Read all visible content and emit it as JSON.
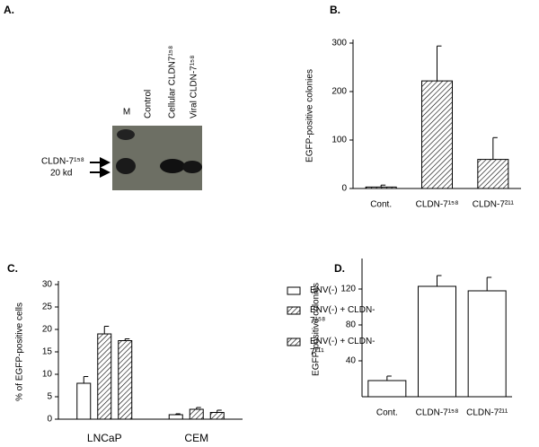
{
  "blot": {
    "label": "A.",
    "lanes": [
      "M",
      "Control",
      "Cellular CLDN7¹⁵⁸",
      "Viral CLDN-7¹⁵⁸"
    ],
    "markers": [
      "CLDN-7¹⁵⁸",
      "20 kd"
    ]
  },
  "chart_data": [
    {
      "type": "bar",
      "label": "B.",
      "ylabel": "EGFP-positive colonies",
      "categories": [
        "Cont.",
        "CLDN-7¹⁵⁸",
        "CLDN-7²¹¹"
      ],
      "values": [
        3,
        222,
        60
      ],
      "errors": [
        4,
        72,
        45
      ],
      "color": "#ffffff",
      "hatch": true,
      "ylim": [
        0,
        300
      ],
      "yticks": [
        0,
        100,
        200,
        300
      ]
    },
    {
      "type": "bar",
      "label": "C.",
      "ylabel": "% of EGFP-positive cells",
      "categories": [
        "LNCaP",
        "CEM"
      ],
      "series": [
        {
          "name": "ENV(-)",
          "color": "#ffffff",
          "hatch": false,
          "values": [
            8,
            1
          ],
          "errors": [
            1.5,
            0.2
          ]
        },
        {
          "name": "ENV(-) + CLDN-7¹⁵⁸",
          "color": "#ffffff",
          "hatch": true,
          "values": [
            19,
            2.2
          ],
          "errors": [
            1.7,
            0.4
          ]
        },
        {
          "name": "ENV(-) + CLDN-7²¹¹",
          "color": "#ffffff",
          "hatch": true,
          "values": [
            17.5,
            1.5
          ],
          "errors": [
            0.4,
            0.5
          ]
        }
      ],
      "ylim": [
        0,
        30
      ],
      "yticks": [
        0,
        5,
        10,
        15,
        20,
        25,
        30
      ]
    },
    {
      "type": "bar",
      "label": "D.",
      "ylabel": "EGFP-positive colonies",
      "categories": [
        "Cont.",
        "CLDN-7¹⁵⁸",
        "CLDN-7²¹¹"
      ],
      "values": [
        18,
        123,
        118
      ],
      "errors": [
        5,
        12,
        15
      ],
      "color": "#ffffff",
      "hatch": false,
      "ylim": [
        0,
        150
      ],
      "yticks": [
        40,
        80,
        120
      ]
    }
  ]
}
